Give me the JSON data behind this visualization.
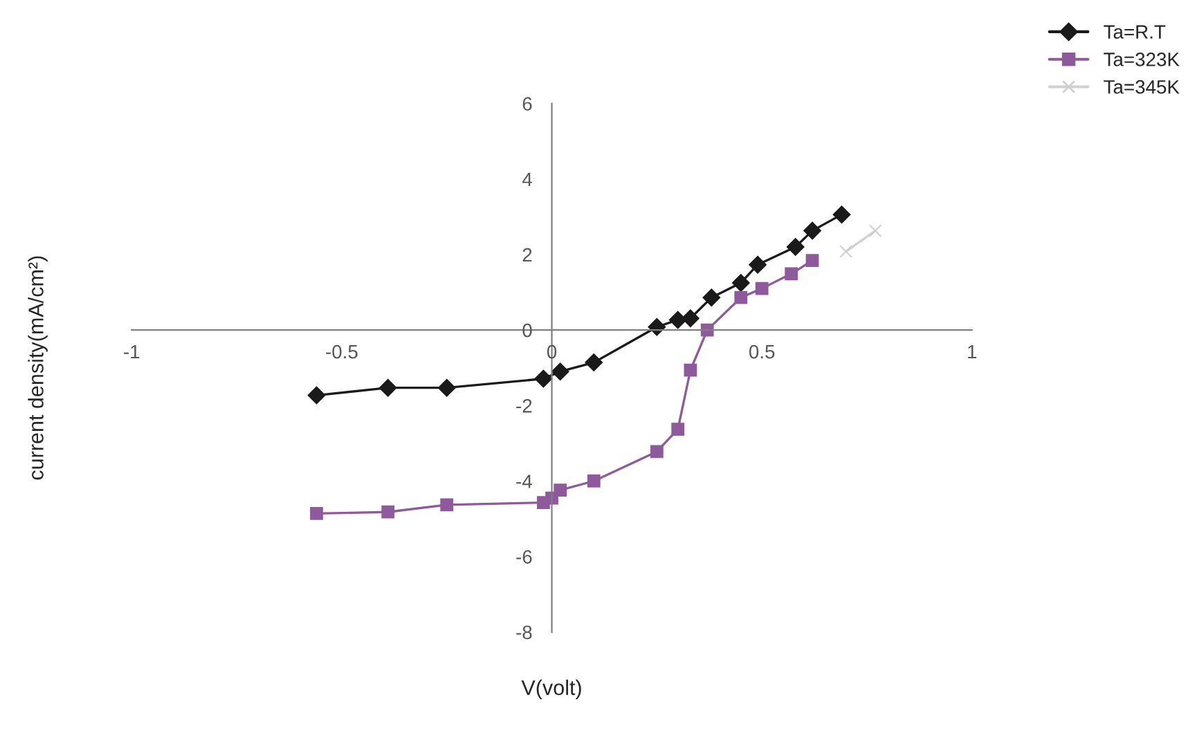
{
  "chart_data": {
    "type": "line",
    "xlabel": "V(volt)",
    "ylabel": "current density(mA/cm²)",
    "xlim": [
      -1,
      1
    ],
    "xticks": [
      -1,
      -0.5,
      0,
      0.5,
      1
    ],
    "ylim": [
      -8,
      6
    ],
    "yticks": [
      -8,
      -6,
      -4,
      -2,
      0,
      2,
      4,
      6
    ],
    "grid": false,
    "legend": "top right",
    "series": [
      {
        "name": "Ta=R.T",
        "color": "#1a1a1a",
        "marker": "diamond",
        "x": [
          -0.56,
          -0.39,
          -0.25,
          -0.02,
          0.02,
          0.1,
          0.25,
          0.3,
          0.33,
          0.38,
          0.45,
          0.49,
          0.58,
          0.62,
          0.69
        ],
        "values": [
          -1.73,
          -1.53,
          -1.53,
          -1.29,
          -1.1,
          -0.86,
          0.08,
          0.27,
          0.31,
          0.86,
          1.25,
          1.73,
          2.2,
          2.63,
          3.06
        ]
      },
      {
        "name": "Ta=323K",
        "color": "#8e5a9b",
        "marker": "square",
        "x": [
          -0.56,
          -0.39,
          -0.25,
          -0.02,
          0.0,
          0.02,
          0.1,
          0.25,
          0.3,
          0.33,
          0.37,
          0.45,
          0.5,
          0.57,
          0.62
        ],
        "values": [
          -4.86,
          -4.82,
          -4.63,
          -4.57,
          -4.45,
          -4.24,
          -4.0,
          -3.22,
          -2.63,
          -1.06,
          0.0,
          0.86,
          1.1,
          1.49,
          1.84
        ]
      },
      {
        "name": "Ta=345K",
        "color": "#d0d0d0",
        "marker": "cross",
        "x": [
          0.7,
          0.77
        ],
        "values": [
          2.08,
          2.63
        ]
      }
    ]
  }
}
